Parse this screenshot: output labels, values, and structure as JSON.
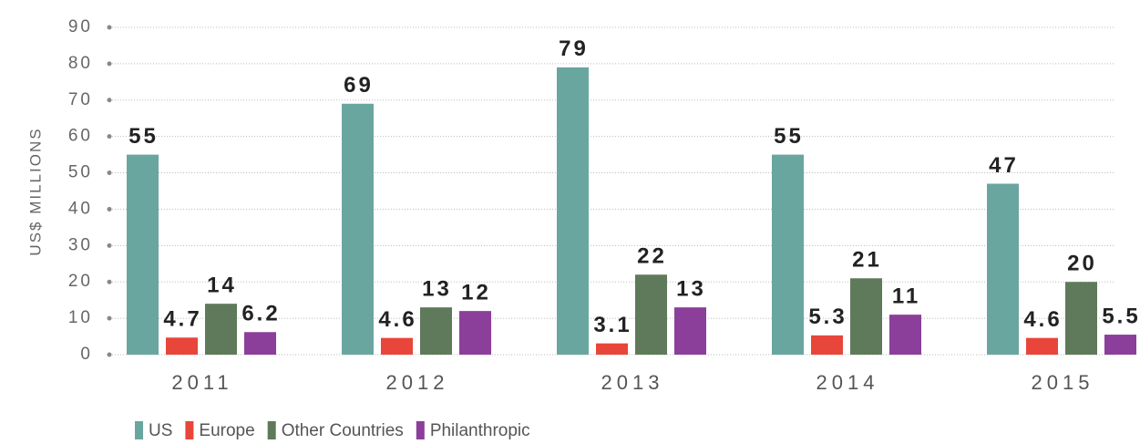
{
  "chart_data": {
    "type": "bar",
    "y_label": "US$ MILLIONS",
    "categories": [
      "2011",
      "2012",
      "2013",
      "2014",
      "2015"
    ],
    "series": [
      {
        "name": "US",
        "color": "#6aa6a0",
        "values": [
          55,
          69,
          79,
          55,
          47
        ]
      },
      {
        "name": "Europe",
        "color": "#e8463a",
        "values": [
          4.7,
          4.6,
          3.1,
          5.3,
          4.6
        ]
      },
      {
        "name": "Other Countries",
        "color": "#5f7a5a",
        "values": [
          14,
          13,
          22,
          21,
          20
        ]
      },
      {
        "name": "Philanthropic",
        "color": "#8b3f9a",
        "values": [
          6.2,
          12,
          13,
          11,
          5.5
        ]
      }
    ],
    "ylim": [
      0,
      90
    ],
    "yticks": [
      0,
      10,
      20,
      30,
      40,
      50,
      60,
      70,
      80,
      90
    ],
    "grid": true
  }
}
